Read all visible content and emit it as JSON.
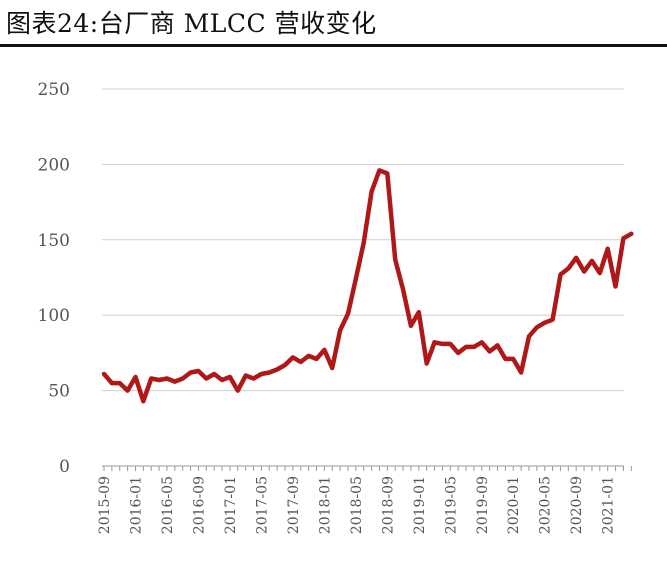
{
  "title": "图表24:台厂商 MLCC 营收变化",
  "chart_data": {
    "type": "line",
    "title": "图表24:台厂商 MLCC 营收变化",
    "xlabel": "",
    "ylabel": "",
    "ylim": [
      0,
      250
    ],
    "y_ticks": [
      "0",
      "50",
      "100",
      "150",
      "200",
      "250"
    ],
    "x_tick_labels": [
      "2015-09",
      "2016-01",
      "2016-05",
      "2016-09",
      "2017-01",
      "2017-05",
      "2017-09",
      "2018-01",
      "2018-05",
      "2018-09",
      "2019-01",
      "2019-05",
      "2019-09",
      "2020-01",
      "2020-05",
      "2020-09",
      "2021-01"
    ],
    "grid": "horizontal",
    "legend": "none",
    "line_color": "#b01818",
    "series": [
      {
        "x": [
          "2015-09",
          "2015-10",
          "2015-11",
          "2015-12",
          "2016-01",
          "2016-02",
          "2016-03",
          "2016-04",
          "2016-05",
          "2016-06",
          "2016-07",
          "2016-08",
          "2016-09",
          "2016-10",
          "2016-11",
          "2016-12",
          "2017-01",
          "2017-02",
          "2017-03",
          "2017-04",
          "2017-05",
          "2017-06",
          "2017-07",
          "2017-08",
          "2017-09",
          "2017-10",
          "2017-11",
          "2017-12",
          "2018-01",
          "2018-02",
          "2018-03",
          "2018-04",
          "2018-05",
          "2018-06",
          "2018-07",
          "2018-08",
          "2018-09",
          "2018-10",
          "2018-11",
          "2018-12",
          "2019-01",
          "2019-02",
          "2019-03",
          "2019-04",
          "2019-05",
          "2019-06",
          "2019-07",
          "2019-08",
          "2019-09",
          "2019-10",
          "2019-11",
          "2019-12",
          "2020-01",
          "2020-02",
          "2020-03",
          "2020-04",
          "2020-05",
          "2020-06",
          "2020-07",
          "2020-08",
          "2020-09",
          "2020-10",
          "2020-11",
          "2020-12",
          "2021-01",
          "2021-02",
          "2021-03",
          "2021-04"
        ],
        "values": [
          61,
          55,
          55,
          50,
          59,
          43,
          58,
          57,
          58,
          56,
          58,
          62,
          63,
          58,
          61,
          57,
          59,
          50,
          60,
          58,
          61,
          62,
          64,
          67,
          72,
          69,
          73,
          71,
          77,
          65,
          90,
          101,
          124,
          148,
          182,
          196,
          194,
          137,
          117,
          93,
          102,
          68,
          82,
          81,
          81,
          75,
          79,
          79,
          82,
          76,
          80,
          71,
          71,
          62,
          86,
          92,
          95,
          97,
          127,
          131,
          138,
          129,
          136,
          128,
          144,
          119,
          151,
          154
        ]
      }
    ]
  }
}
